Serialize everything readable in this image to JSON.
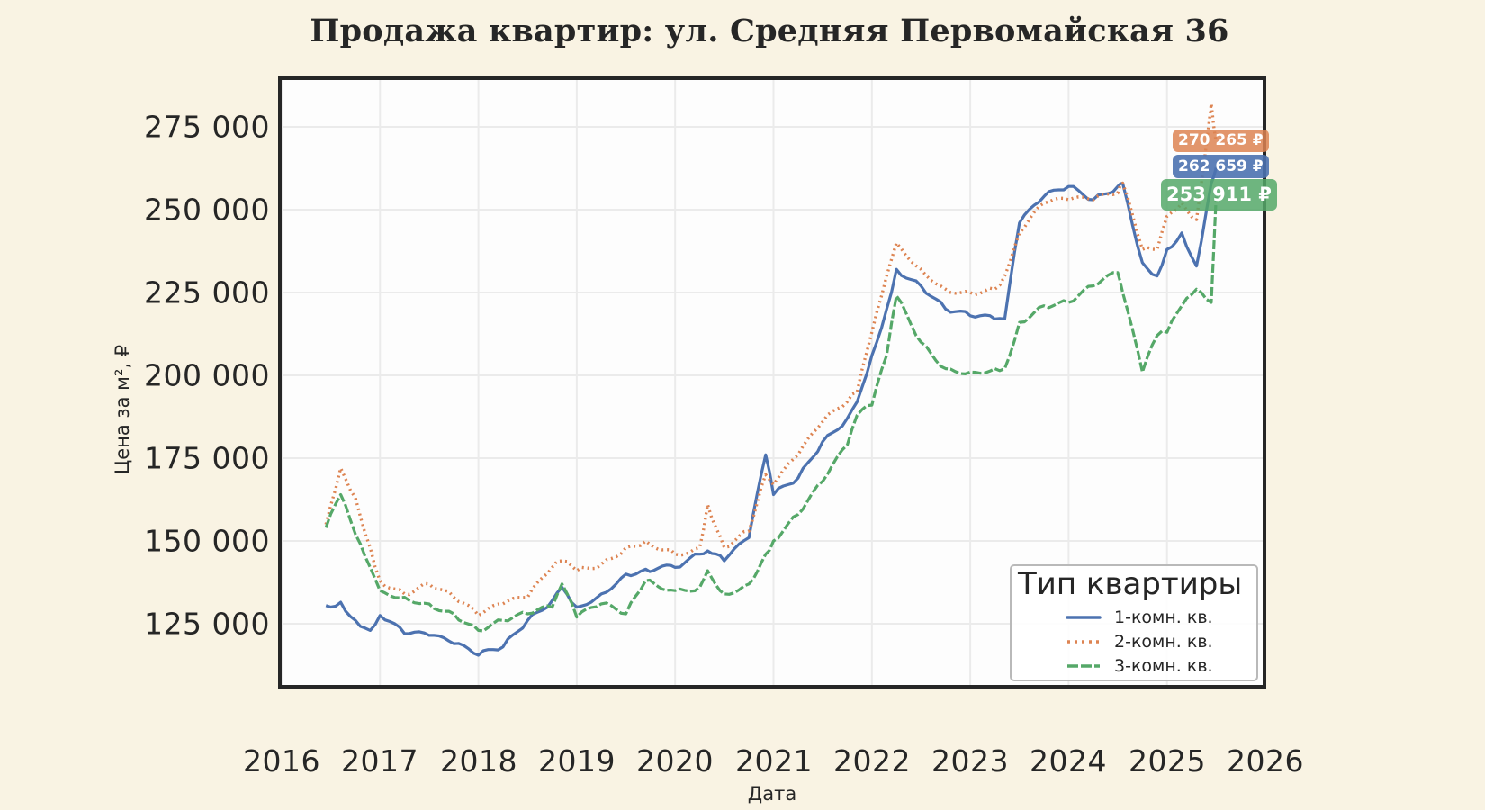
{
  "title": "Продажа квартир: ул. Средняя Первомайская 36",
  "axes": {
    "xlabel": "Дата",
    "ylabel": "Цена за м², ₽",
    "xticks": [
      "2016",
      "2017",
      "2018",
      "2019",
      "2020",
      "2021",
      "2022",
      "2023",
      "2024",
      "2025",
      "2026"
    ],
    "yticks": [
      "125 000",
      "150 000",
      "175 000",
      "200 000",
      "225 000",
      "250 000",
      "275 000"
    ]
  },
  "legend": {
    "title": "Тип квартиры",
    "items": [
      {
        "label": "1-комн. кв.",
        "color": "#4c72b0",
        "style": "solid"
      },
      {
        "label": "2-комн. кв.",
        "color": "#dd8452",
        "style": "dotted"
      },
      {
        "label": "3-комн. кв.",
        "color": "#55a868",
        "style": "dashed"
      }
    ]
  },
  "end_labels": [
    {
      "series": "2-комн. кв.",
      "text": "270 265 ₽",
      "color": "#dd8452"
    },
    {
      "series": "1-комн. кв.",
      "text": "262 659 ₽",
      "color": "#4c72b0"
    },
    {
      "series": "3-комн. кв.",
      "text": "253 911 ₽",
      "color": "#55a868"
    }
  ],
  "colors": {
    "background": "#f9f3e3",
    "plot_background": "#fdfdfd",
    "grid": "#ebebeb",
    "frame": "#262626"
  },
  "chart_data": {
    "type": "line",
    "title": "Продажа квартир: ул. Средняя Первомайская 36",
    "xlabel": "Дата",
    "ylabel": "Цена за м², ₽",
    "xlim": [
      2016.0,
      2026.0
    ],
    "ylim": [
      105700,
      289900
    ],
    "grid": true,
    "legend_position": "lower right",
    "legend_title": "Тип квартиры",
    "x": [
      2016.45,
      2016.6,
      2016.75,
      2016.9,
      2017.0,
      2017.25,
      2017.5,
      2017.75,
      2018.0,
      2018.25,
      2018.5,
      2018.75,
      2018.85,
      2019.0,
      2019.25,
      2019.5,
      2019.7,
      2020.0,
      2020.25,
      2020.33,
      2020.5,
      2020.75,
      2020.92,
      2021.0,
      2021.25,
      2021.5,
      2021.75,
      2021.85,
      2022.0,
      2022.15,
      2022.25,
      2022.5,
      2022.75,
      2023.0,
      2023.25,
      2023.35,
      2023.5,
      2023.75,
      2024.0,
      2024.25,
      2024.5,
      2024.55,
      2024.75,
      2024.9,
      2025.0,
      2025.15,
      2025.3,
      2025.45,
      2025.5
    ],
    "series": [
      {
        "name": "1-комн. кв.",
        "values": [
          130500,
          131500,
          126000,
          123000,
          127500,
          122000,
          121500,
          119000,
          115500,
          118000,
          126000,
          132000,
          136000,
          130000,
          134000,
          140000,
          141500,
          142000,
          146000,
          147000,
          144000,
          151000,
          176000,
          164000,
          169000,
          180000,
          187000,
          192000,
          206000,
          220000,
          232000,
          227000,
          220000,
          218000,
          217000,
          217000,
          246000,
          254000,
          257000,
          253000,
          257000,
          258000,
          234000,
          230000,
          238000,
          243000,
          233000,
          258000,
          262659
        ]
      },
      {
        "name": "2-комн. кв.",
        "values": [
          155000,
          172000,
          163000,
          148000,
          138000,
          134000,
          137000,
          133000,
          127500,
          131000,
          133000,
          142000,
          144000,
          141000,
          143000,
          148000,
          150000,
          146000,
          148000,
          161000,
          148000,
          153000,
          170000,
          167000,
          176000,
          186000,
          192000,
          195000,
          213000,
          230000,
          240000,
          232000,
          226000,
          225000,
          226000,
          230000,
          243000,
          252000,
          253000,
          253000,
          255000,
          258000,
          238000,
          238000,
          248000,
          252000,
          247000,
          282000,
          270265
        ]
      },
      {
        "name": "3-комн. кв.",
        "values": [
          154000,
          164000,
          152000,
          142000,
          135000,
          133000,
          131000,
          128000,
          123000,
          126000,
          128000,
          130000,
          137000,
          127000,
          131000,
          128000,
          138000,
          135000,
          136000,
          141000,
          134000,
          137000,
          146000,
          150000,
          158000,
          168000,
          179000,
          188000,
          191000,
          206000,
          224000,
          210000,
          202000,
          201000,
          202000,
          202000,
          216000,
          221000,
          222000,
          227000,
          231000,
          225000,
          201000,
          212000,
          213000,
          221000,
          226000,
          222000,
          253911
        ]
      }
    ],
    "end_annotations": [
      "270 265 ₽",
      "262 659 ₽",
      "253 911 ₽"
    ]
  }
}
